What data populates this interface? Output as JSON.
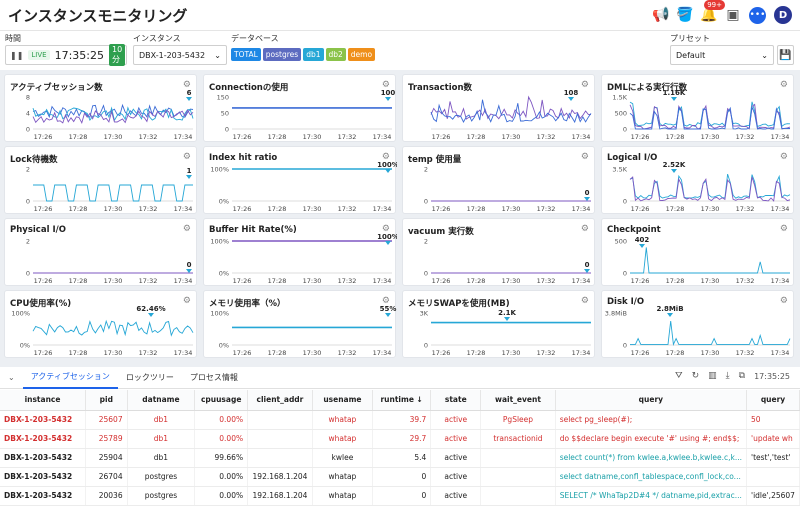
{
  "app": {
    "title": "インスタンスモニタリング",
    "notification_count": "99+",
    "user_initial": "D"
  },
  "filters": {
    "time_label": "時間",
    "time_value": "17:35:25",
    "live_label": "LIVE",
    "range_label": "10分",
    "instance_label": "インスタンス",
    "instance_value": "DBX-1-203-5432",
    "database_label": "データベース",
    "databases": [
      {
        "name": "TOTAL",
        "color": "#1e88e5"
      },
      {
        "name": "postgres",
        "color": "#5c6bc0"
      },
      {
        "name": "db1",
        "color": "#26a7d6"
      },
      {
        "name": "db2",
        "color": "#8bc34a"
      },
      {
        "name": "demo",
        "color": "#ef8f1a"
      }
    ],
    "preset_label": "プリセット",
    "preset_value": "Default"
  },
  "cards": [
    {
      "title": "アクティブセッション数",
      "ymax": "8",
      "ymid": "4",
      "ymin": "0",
      "value": "6",
      "type": "noisy",
      "colors": [
        "#3b6bd6",
        "#26a7d6",
        "#7e57c2"
      ]
    },
    {
      "title": "Connectionの使用",
      "ymax": "150",
      "ymid": "50",
      "ymin": "0",
      "value": "100",
      "type": "flat",
      "colors": [
        "#3b6bd6"
      ],
      "level": 0.66
    },
    {
      "title": "Transaction数",
      "ymax": "",
      "ymid": "",
      "ymin": "",
      "value": "108",
      "type": "spiky",
      "colors": [
        "#7e57c2",
        "#3b6bd6"
      ]
    },
    {
      "title": "DMLによる実行行数",
      "ymax": "1.5K",
      "ymid": "500",
      "ymin": "0",
      "value": "1.16K",
      "type": "peaks",
      "colors": [
        "#26a7d6",
        "#7e57c2",
        "#3b6bd6"
      ]
    },
    {
      "title": "Lock待機数",
      "ymax": "2",
      "ymid": "",
      "ymin": "0",
      "value": "1",
      "type": "square",
      "colors": [
        "#26a7d6"
      ]
    },
    {
      "title": "Index hit ratio",
      "ymax": "100%",
      "ymid": "",
      "ymin": "0%",
      "value": "100%",
      "type": "flat",
      "colors": [
        "#26a7d6"
      ],
      "level": 1.0
    },
    {
      "title": "temp 使用量",
      "ymax": "2",
      "ymid": "",
      "ymin": "0",
      "value": "0",
      "type": "zero",
      "colors": [
        "#7e57c2"
      ]
    },
    {
      "title": "Logical I/O",
      "ymax": "3.5K",
      "ymid": "",
      "ymin": "0",
      "value": "2.52K",
      "type": "peaks",
      "colors": [
        "#26a7d6",
        "#7e57c2"
      ]
    },
    {
      "title": "Physical I/O",
      "ymax": "2",
      "ymid": "",
      "ymin": "0",
      "value": "0",
      "type": "zero",
      "colors": [
        "#7e57c2"
      ]
    },
    {
      "title": "Buffer Hit Rate(%)",
      "ymax": "100%",
      "ymid": "",
      "ymin": "0%",
      "value": "100%",
      "type": "flat",
      "colors": [
        "#7e57c2"
      ],
      "level": 1.0
    },
    {
      "title": "vacuum 実行数",
      "ymax": "2",
      "ymid": "",
      "ymin": "0",
      "value": "0",
      "type": "zero",
      "colors": [
        "#7e57c2"
      ]
    },
    {
      "title": "Checkpoint",
      "ymax": "500",
      "ymid": "",
      "ymin": "0",
      "value": "402",
      "type": "checkpoint",
      "colors": [
        "#26a7d6"
      ]
    },
    {
      "title": "CPU使用率(%)",
      "ymax": "100%",
      "ymid": "",
      "ymin": "0%",
      "value": "62.46%",
      "type": "cpu",
      "colors": [
        "#26a7d6"
      ]
    },
    {
      "title": "メモリ使用率（%）",
      "ymax": "100%",
      "ymid": "",
      "ymin": "0%",
      "value": "55%",
      "type": "flat",
      "colors": [
        "#26a7d6"
      ],
      "level": 0.55
    },
    {
      "title": "メモリSWAPを使用(MB)",
      "ymax": "3K",
      "ymid": "",
      "ymin": "0",
      "value": "2.1K",
      "type": "flat",
      "colors": [
        "#26a7d6"
      ],
      "level": 0.7
    },
    {
      "title": "Disk I/O",
      "ymax": "3.8MiB",
      "ymid": "",
      "ymin": "0",
      "value": "2.8MiB",
      "type": "disk",
      "colors": [
        "#26a7d6"
      ]
    }
  ],
  "xticks": [
    "17:26",
    "17:28",
    "17:30",
    "17:32",
    "17:34"
  ],
  "tabs": {
    "active": "アクティブセッション",
    "lock": "ロックツリー",
    "process": "プロセス情報",
    "time": "17:35:25"
  },
  "table": {
    "headers": [
      "instance",
      "pid",
      "datname",
      "cpuusage",
      "client_addr",
      "usename",
      "runtime ↓",
      "state",
      "wait_event",
      "query",
      "query"
    ],
    "rows": [
      {
        "red": true,
        "cells": [
          "DBX-1-203-5432",
          "25607",
          "db1",
          "0.00%",
          "",
          "whatap",
          "39.7",
          "active",
          "PgSleep",
          "select pg_sleep(#);",
          "50"
        ]
      },
      {
        "red": true,
        "cells": [
          "DBX-1-203-5432",
          "25789",
          "db1",
          "0.00%",
          "",
          "whatap",
          "29.7",
          "active",
          "transactionid",
          "do $$declare begin execute '#' using #; end$$;",
          "'update wh"
        ]
      },
      {
        "red": false,
        "cells": [
          "DBX-1-203-5432",
          "25904",
          "db1",
          "99.66%",
          "",
          "kwlee",
          "5.4",
          "active",
          "",
          "select count(*) from kwlee.a,kwlee.b,kwlee.c,k...",
          "'test','test'"
        ]
      },
      {
        "red": false,
        "cells": [
          "DBX-1-203-5432",
          "26704",
          "postgres",
          "0.00%",
          "192.168.1.204",
          "whatap",
          "0",
          "active",
          "",
          "select datname,confl_tablespace,confl_lock,co...",
          ""
        ]
      },
      {
        "red": false,
        "cells": [
          "DBX-1-203-5432",
          "20036",
          "postgres",
          "0.00%",
          "192.168.1.204",
          "whatap",
          "0",
          "active",
          "",
          "SELECT /* WhaTap2D#4 */ datname,pid,extrac...",
          "'idle',25607"
        ]
      }
    ]
  }
}
